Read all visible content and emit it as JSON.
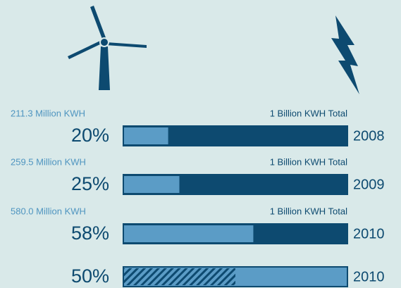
{
  "chart_data": {
    "type": "bar",
    "categories": [
      "2008",
      "2009",
      "2010",
      "2010"
    ],
    "values": [
      20,
      25,
      58,
      50
    ],
    "value_labels": [
      "20%",
      "25%",
      "58%",
      "50%"
    ],
    "amounts": [
      "211.3 Million KWH",
      "259.5 Million KWH",
      "580.0 Million KWH",
      null
    ],
    "totals": [
      "1 Billion KWH Total",
      "1 Billion KWH Total",
      "1 Billion KWH Total",
      null
    ],
    "hatched": [
      false,
      false,
      false,
      true
    ],
    "xlim": [
      0,
      100
    ],
    "color": "#5b9cc6",
    "track_color": "#0d4a70"
  }
}
